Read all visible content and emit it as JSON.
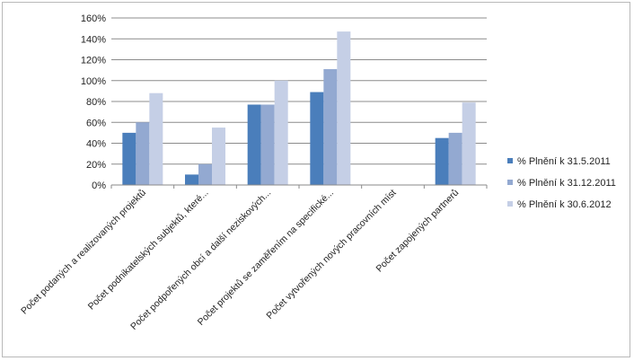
{
  "chart_data": {
    "type": "bar",
    "categories": [
      "Počet podaných a realizovaných projektů",
      "Počet podnikatelských subjektů, které...",
      "Počet podpořených obcí a další neziskových...",
      "Počet projektů se zaměřením na specifické...",
      "Počet vytvořených nových pracovních míst",
      "Počet zapojených partnerů"
    ],
    "series": [
      {
        "name": "% Plnění k 31.5.2011",
        "color": "#4a7ebb",
        "values": [
          50,
          10,
          77,
          89,
          0,
          45
        ]
      },
      {
        "name": "% Plnění k 31.12.2011",
        "color": "#93a9d1",
        "values": [
          60,
          20,
          77,
          111,
          0,
          50
        ]
      },
      {
        "name": "% Plnění k 30.6.2012",
        "color": "#c5cfe6",
        "values": [
          88,
          55,
          100,
          147,
          0,
          79
        ]
      }
    ],
    "yticks": [
      "0%",
      "20%",
      "40%",
      "60%",
      "80%",
      "100%",
      "120%",
      "140%",
      "160%"
    ],
    "ylim": [
      0,
      160
    ],
    "grid": true,
    "legend": "right"
  }
}
